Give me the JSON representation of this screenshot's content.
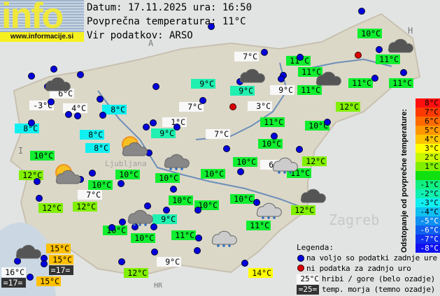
{
  "logo": {
    "word": "info",
    "url": "www.informacije.si"
  },
  "header": {
    "date_line": "Datum: 17.11.2025 ura: 16:50",
    "avg_line": "Povprečna temperatura: 11°C",
    "source_line": "Vir podatkov: ARSO"
  },
  "colors": {
    "white": "#f8f8f8",
    "green": "#10ee30",
    "lightgreen": "#80f000",
    "teal": "#20f0b0",
    "cyan": "#10f0f0",
    "orange": "#ffc000",
    "yellow": "#ffff00",
    "dark": "#333333",
    "station_dot": "#0000dd",
    "missing_dot": "#d80000"
  },
  "stations": [
    {
      "t": "10°C",
      "c": "green"
    },
    {
      "t": "11°C",
      "c": "green"
    },
    {
      "t": "7°C",
      "c": "white"
    },
    {
      "t": "11°C",
      "c": "green"
    },
    {
      "t": "9°C",
      "c": "teal"
    },
    {
      "t": "11°C",
      "c": "green"
    },
    {
      "t": "9°C",
      "c": "teal"
    },
    {
      "t": "9°C",
      "c": "white"
    },
    {
      "t": "11°C",
      "c": "green"
    },
    {
      "t": "11°C",
      "c": "green"
    },
    {
      "t": "11°C",
      "c": "green"
    },
    {
      "t": "12°C",
      "c": "lightgreen"
    },
    {
      "t": "3°C",
      "c": "white"
    },
    {
      "t": "11°C",
      "c": "green"
    },
    {
      "t": "10°C",
      "c": "green"
    },
    {
      "t": "6°C",
      "c": "white"
    },
    {
      "t": "-3°C",
      "c": "white"
    },
    {
      "t": "4°C",
      "c": "white"
    },
    {
      "t": "8°C",
      "c": "cyan"
    },
    {
      "t": "8°C",
      "c": "cyan"
    },
    {
      "t": "7°C",
      "c": "white"
    },
    {
      "t": "1°C",
      "c": "white"
    },
    {
      "t": "9°C",
      "c": "teal"
    },
    {
      "t": "7°C",
      "c": "white"
    },
    {
      "t": "8°C",
      "c": "cyan"
    },
    {
      "t": "8°C",
      "c": "cyan"
    },
    {
      "t": "10°C",
      "c": "green"
    },
    {
      "t": "10°C",
      "c": "green"
    },
    {
      "t": "10°C",
      "c": "green"
    },
    {
      "t": "6°C",
      "c": "white"
    },
    {
      "t": "12°C",
      "c": "lightgreen"
    },
    {
      "t": "11°C",
      "c": "green"
    },
    {
      "t": "12°C",
      "c": "lightgreen"
    },
    {
      "t": "10°C",
      "c": "green"
    },
    {
      "t": "10°C",
      "c": "green"
    },
    {
      "t": "10°C",
      "c": "green"
    },
    {
      "t": "10°C",
      "c": "green"
    },
    {
      "t": "7°C",
      "c": "white"
    },
    {
      "t": "12°C",
      "c": "lightgreen"
    },
    {
      "t": "12°C",
      "c": "lightgreen"
    },
    {
      "t": "10°C",
      "c": "green"
    },
    {
      "t": "10°C",
      "c": "green"
    },
    {
      "t": "10°C",
      "c": "green"
    },
    {
      "t": "12°C",
      "c": "lightgreen"
    },
    {
      "t": "9°C",
      "c": "teal"
    },
    {
      "t": "10°C",
      "c": "green"
    },
    {
      "t": "10°C",
      "c": "green"
    },
    {
      "t": "11°C",
      "c": "green"
    },
    {
      "t": "11°C",
      "c": "green"
    },
    {
      "t": "15°C",
      "c": "orange"
    },
    {
      "t": "15°C",
      "c": "orange"
    },
    {
      "t": "=17=",
      "c": "dark"
    },
    {
      "t": "16°C",
      "c": "white"
    },
    {
      "t": "=17=",
      "c": "dark"
    },
    {
      "t": "15°C",
      "c": "orange"
    },
    {
      "t": "9°C",
      "c": "white"
    },
    {
      "t": "12°C",
      "c": "lightgreen"
    },
    {
      "t": "14°C",
      "c": "yellow"
    }
  ],
  "scale": {
    "title": "Odstopanje od povprečne temperature:",
    "steps": [
      {
        "t": "8°C",
        "c": "#ff1010"
      },
      {
        "t": "7°C",
        "c": "#ff3a00"
      },
      {
        "t": "6°C",
        "c": "#ff6a00"
      },
      {
        "t": "5°C",
        "c": "#ff9800"
      },
      {
        "t": "4°C",
        "c": "#ffc400"
      },
      {
        "t": "3°C",
        "c": "#ffff00"
      },
      {
        "t": "2°C",
        "c": "#c8f800"
      },
      {
        "t": "1°C",
        "c": "#80f000"
      },
      {
        "t": "",
        "c": "#10e010"
      },
      {
        "t": "-1°C",
        "c": "#10f080"
      },
      {
        "t": "-2°C",
        "c": "#10f0b0"
      },
      {
        "t": "-3°C",
        "c": "#10f0f0"
      },
      {
        "t": "-4°C",
        "c": "#10c0f0"
      },
      {
        "t": "-5°C",
        "c": "#1090f0"
      },
      {
        "t": "-6°C",
        "c": "#1060f0"
      },
      {
        "t": "-7°C",
        "c": "#1030f0"
      },
      {
        "t": "-8°C",
        "c": "#1010f0"
      }
    ]
  },
  "legend": {
    "title": "Legenda:",
    "blue": "na voljo so podatki zadnje ure",
    "red": "ni podatka za zadnjo uro",
    "white_sample": "25°C",
    "white_text": "hribi / gore (belo ozadje)",
    "dark_sample": "=25=",
    "dark_text": "temp. morja (temno ozadje)"
  },
  "map_labels": {
    "austria": "A",
    "italy": "I",
    "hungary": "H",
    "croatia": "HR",
    "zagreb": "Zagreb",
    "ljubljana": "Ljubljana"
  }
}
